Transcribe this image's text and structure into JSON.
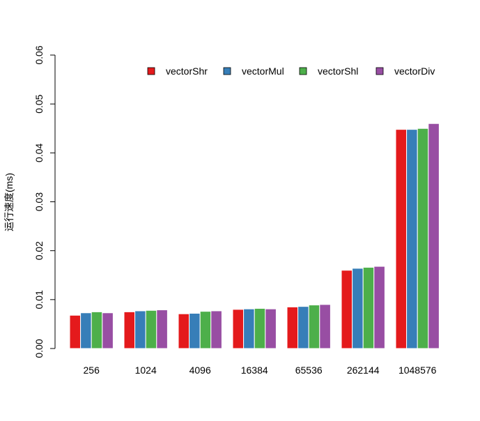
{
  "chart_data": {
    "type": "bar",
    "categories": [
      "256",
      "1024",
      "4096",
      "16384",
      "65536",
      "262144",
      "1048576"
    ],
    "series": [
      {
        "name": "vectorShr",
        "color": "#E41A1C",
        "values": [
          0.0068,
          0.0075,
          0.0071,
          0.008,
          0.0085,
          0.016,
          0.0448
        ]
      },
      {
        "name": "vectorMul",
        "color": "#377EB8",
        "values": [
          0.0073,
          0.0077,
          0.0072,
          0.0081,
          0.0086,
          0.0164,
          0.0448
        ]
      },
      {
        "name": "vectorShl",
        "color": "#4DAF4A",
        "values": [
          0.0075,
          0.0078,
          0.0076,
          0.0082,
          0.0089,
          0.0166,
          0.045
        ]
      },
      {
        "name": "vectorDiv",
        "color": "#984EA3",
        "values": [
          0.0073,
          0.0079,
          0.0077,
          0.0081,
          0.009,
          0.0168,
          0.046
        ]
      }
    ],
    "title": "",
    "xlabel": "",
    "ylabel": "运行速度(ms)",
    "ylim": [
      0,
      0.06
    ],
    "yticks": [
      "0.00",
      "0.01",
      "0.02",
      "0.03",
      "0.04",
      "0.05",
      "0.06"
    ],
    "grid": false,
    "legend_position": "top-right"
  }
}
